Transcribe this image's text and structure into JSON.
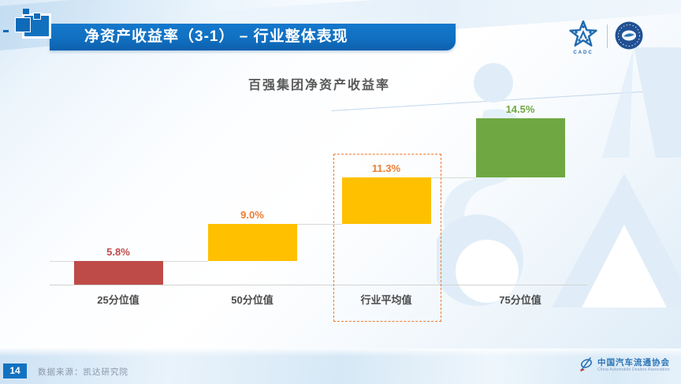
{
  "header": {
    "title": "净资产收益率（3-1） – 行业整体表现",
    "cadc_caption": "CADC"
  },
  "chart_data": {
    "type": "bar",
    "title": "百强集团净资产收益率",
    "categories": [
      "25分位值",
      "50分位值",
      "行业平均值",
      "75分位值"
    ],
    "values": [
      5.8,
      9.0,
      11.3,
      14.5
    ],
    "display_values": [
      "5.8%",
      "9.0%",
      "11.3%",
      "14.5%"
    ],
    "unit": "%",
    "bar_colors": [
      "#be4b48",
      "#ffc000",
      "#ffc000",
      "#6fa843"
    ],
    "label_colors": [
      "#be4b48",
      "#ed7d31",
      "#ed7d31",
      "#6fa843"
    ],
    "layout": {
      "style": "cascade (each bar starts at top of previous bar)",
      "grid": false,
      "legend": false,
      "value_labels": "above bars",
      "connector_lines": true,
      "highlight": {
        "category": "行业平均值",
        "box_style": "dashed",
        "box_color": "#ed7d31"
      }
    }
  },
  "footer": {
    "page_number": "14",
    "source": "数据来源：凯达研究院",
    "association_cn": "中国汽车流通协会",
    "association_en": "China Automobile Dealers Association"
  },
  "colors": {
    "banner_blue": "#1272c2",
    "accent_orange": "#ed7d31",
    "logo_blue": "#1e6bb0",
    "seal_navy": "#215094",
    "text_gray": "#595959",
    "connector_gray": "#d9d9d9",
    "watermark_blue": "#e0edf8"
  }
}
